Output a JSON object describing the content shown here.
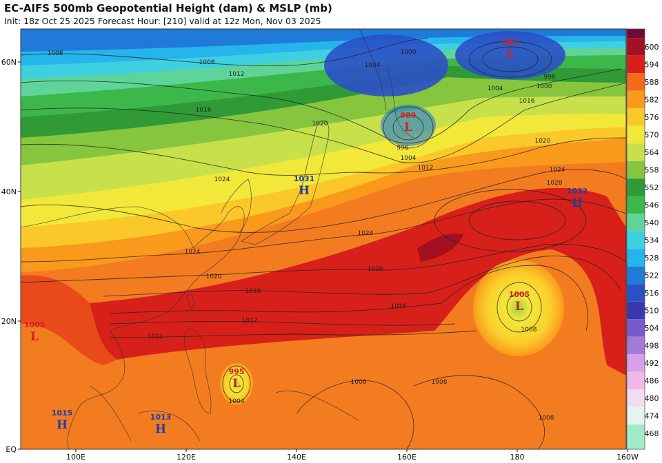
{
  "header": {
    "title": "EC-AIFS 500mb Geopotential Height (dam) & MSLP (mb)",
    "subtitle": "Init: 18z Oct 25 2025   Forecast Hour: [210]   valid at 12z Mon, Nov 03 2025"
  },
  "axes": {
    "lat_labels": [
      "60N",
      "40N",
      "20N",
      "EQ"
    ],
    "lon_labels": [
      "100E",
      "120E",
      "140E",
      "160E",
      "180",
      "160W"
    ]
  },
  "colorbar": {
    "levels": [
      600,
      594,
      588,
      582,
      576,
      570,
      564,
      558,
      552,
      546,
      540,
      534,
      528,
      522,
      516,
      510,
      504,
      498,
      492,
      486,
      480,
      474,
      468
    ],
    "colors": [
      "#6e0a3a",
      "#a3101f",
      "#d8201a",
      "#f36a1a",
      "#f99a1c",
      "#fbc82a",
      "#f2e83a",
      "#c8e04a",
      "#86c63e",
      "#2f9a36",
      "#3cb84a",
      "#5fd49a",
      "#3ed0e0",
      "#26b4ec",
      "#1f7ad8",
      "#2a50c8",
      "#3a36b0",
      "#7a5ac8",
      "#a47ad8",
      "#d8a0e6",
      "#f0b8e8",
      "#f4dcf0",
      "#e4f4f0",
      "#a0ecc8"
    ]
  },
  "pressure_centers": [
    {
      "symbol": "L",
      "value": "983"
    },
    {
      "symbol": "L",
      "value": "989"
    },
    {
      "symbol": "H",
      "value": "1031"
    },
    {
      "symbol": "H",
      "value": "1032"
    },
    {
      "symbol": "L",
      "value": "1005"
    },
    {
      "symbol": "L",
      "value": "1005"
    },
    {
      "symbol": "L",
      "value": "995"
    },
    {
      "symbol": "H",
      "value": "1015"
    },
    {
      "symbol": "H",
      "value": "1013"
    }
  ],
  "isobar_labels": [
    "1008",
    "1008",
    "1012",
    "1016",
    "1020",
    "1024",
    "1024",
    "1020",
    "1016",
    "1012",
    "1012",
    "1008",
    "1008",
    "1008",
    "1004",
    "1028",
    "1024",
    "1020",
    "1016",
    "1004",
    "1000",
    "996",
    "1000",
    "1004",
    "996",
    "1004",
    "1012",
    "1024",
    "1020",
    "1016",
    "1008"
  ]
}
